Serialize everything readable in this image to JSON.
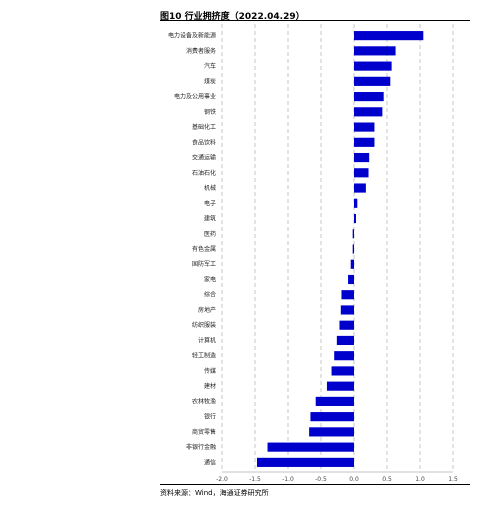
{
  "header": {
    "title": "图10 行业拥挤度（2022.04.29）"
  },
  "footer": {
    "source": "资料来源：Wind，海通证券研究所"
  },
  "chart_data": {
    "type": "bar",
    "orientation": "horizontal",
    "categories": [
      "电力设备及新能源",
      "消费者服务",
      "汽车",
      "煤炭",
      "电力及公用事业",
      "钢铁",
      "基础化工",
      "食品饮料",
      "交通运输",
      "石油石化",
      "机械",
      "电子",
      "建筑",
      "医药",
      "有色金属",
      "国防军工",
      "家电",
      "综合",
      "房地产",
      "纺织服装",
      "计算机",
      "轻工制造",
      "传媒",
      "建材",
      "农林牧渔",
      "银行",
      "商贸零售",
      "非银行金融",
      "通信"
    ],
    "values": [
      1.05,
      0.63,
      0.57,
      0.55,
      0.45,
      0.43,
      0.31,
      0.31,
      0.23,
      0.22,
      0.18,
      0.05,
      0.03,
      -0.02,
      -0.02,
      -0.05,
      -0.09,
      -0.19,
      -0.2,
      -0.22,
      -0.26,
      -0.3,
      -0.34,
      -0.41,
      -0.58,
      -0.66,
      -0.68,
      -1.31,
      -1.47
    ],
    "xlim": [
      -2.0,
      1.5
    ],
    "xticks": [
      "-2.0",
      "-1.5",
      "-1.0",
      "-0.5",
      "0.0",
      "0.5",
      "1.0",
      "1.5"
    ],
    "grid": "vertical-dashed",
    "bar_color": "#0000cc"
  }
}
